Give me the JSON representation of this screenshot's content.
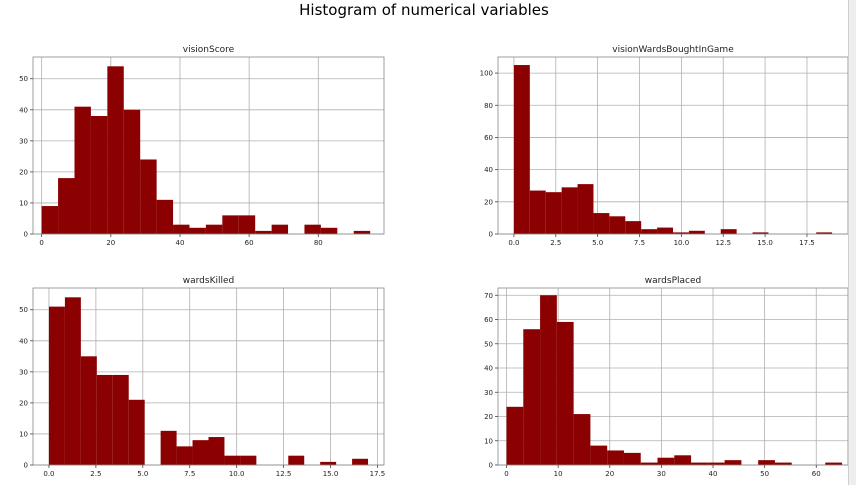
{
  "title": "Histogram of numerical variables",
  "colors": {
    "bar": "#8b0000",
    "grid": "#b0b0b0",
    "axis": "#888888"
  },
  "chart_data": [
    {
      "type": "bar",
      "title": "visionScore",
      "grid": true,
      "xlim": [
        -2.5,
        99
      ],
      "ylim": [
        0,
        57
      ],
      "xticks": [
        0,
        20,
        40,
        60,
        80
      ],
      "xtick_labels": [
        "0",
        "20",
        "40",
        "60",
        "80"
      ],
      "yticks": [
        0,
        10,
        20,
        30,
        40,
        50
      ],
      "ytick_labels": [
        "0",
        "10",
        "20",
        "30",
        "40",
        "50"
      ],
      "bin_edges": [
        0,
        4.75,
        9.5,
        14.25,
        19,
        23.75,
        28.5,
        33.25,
        38,
        42.75,
        47.5,
        52.25,
        57,
        61.75,
        66.5,
        71.25,
        76,
        80.75,
        85.5,
        90.25,
        95
      ],
      "values": [
        9,
        18,
        41,
        38,
        54,
        40,
        24,
        11,
        3,
        2,
        3,
        6,
        6,
        1,
        3,
        0,
        3,
        2,
        0,
        1
      ]
    },
    {
      "type": "bar",
      "title": "visionWardsBoughtInGame",
      "grid": true,
      "xlim": [
        -0.95,
        19.95
      ],
      "ylim": [
        0,
        110
      ],
      "xticks": [
        0,
        2.5,
        5,
        7.5,
        10,
        12.5,
        15,
        17.5
      ],
      "xtick_labels": [
        "0.0",
        "2.5",
        "5.0",
        "7.5",
        "10.0",
        "12.5",
        "15.0",
        "17.5"
      ],
      "yticks": [
        0,
        20,
        40,
        60,
        80,
        100
      ],
      "ytick_labels": [
        "0",
        "20",
        "40",
        "60",
        "80",
        "100"
      ],
      "bin_edges": [
        0,
        0.95,
        1.9,
        2.85,
        3.8,
        4.75,
        5.7,
        6.65,
        7.6,
        8.55,
        9.5,
        10.45,
        11.4,
        12.35,
        13.3,
        14.25,
        15.2,
        16.15,
        17.1,
        18.05,
        19
      ],
      "values": [
        105,
        27,
        26,
        29,
        31,
        13,
        11,
        8,
        3,
        4,
        1,
        2,
        0,
        3,
        0,
        1,
        0,
        0,
        0,
        1
      ]
    },
    {
      "type": "bar",
      "title": "wardsKilled",
      "grid": true,
      "xlim": [
        -0.85,
        17.85
      ],
      "ylim": [
        0,
        57
      ],
      "xticks": [
        0,
        2.5,
        5,
        7.5,
        10,
        12.5,
        15,
        17.5
      ],
      "xtick_labels": [
        "0.0",
        "2.5",
        "5.0",
        "7.5",
        "10.0",
        "12.5",
        "15.0",
        "17.5"
      ],
      "yticks": [
        0,
        10,
        20,
        30,
        40,
        50
      ],
      "ytick_labels": [
        "0",
        "10",
        "20",
        "30",
        "40",
        "50"
      ],
      "bin_edges": [
        0,
        0.85,
        1.7,
        2.55,
        3.4,
        4.25,
        5.1,
        5.95,
        6.8,
        7.65,
        8.5,
        9.35,
        10.2,
        11.05,
        11.9,
        12.75,
        13.6,
        14.45,
        15.3,
        16.15,
        17
      ],
      "values": [
        51,
        54,
        35,
        29,
        29,
        21,
        0,
        11,
        6,
        8,
        9,
        3,
        3,
        0,
        0,
        3,
        0,
        1,
        0,
        2
      ]
    },
    {
      "type": "bar",
      "title": "wardsPlaced",
      "grid": true,
      "xlim": [
        -1.65,
        66.15
      ],
      "ylim": [
        0,
        73
      ],
      "xticks": [
        0,
        10,
        20,
        30,
        40,
        50,
        60
      ],
      "xtick_labels": [
        "0",
        "10",
        "20",
        "30",
        "40",
        "50",
        "60"
      ],
      "yticks": [
        0,
        10,
        20,
        30,
        40,
        50,
        60,
        70
      ],
      "ytick_labels": [
        "0",
        "10",
        "20",
        "30",
        "40",
        "50",
        "60",
        "70"
      ],
      "bin_edges": [
        0,
        3.25,
        6.5,
        9.75,
        13,
        16.25,
        19.5,
        22.75,
        26,
        29.25,
        32.5,
        35.75,
        39,
        42.25,
        45.5,
        48.75,
        52,
        55.25,
        58.5,
        61.75,
        65
      ],
      "values": [
        24,
        56,
        70,
        59,
        21,
        8,
        6,
        5,
        1,
        3,
        4,
        1,
        1,
        2,
        0,
        2,
        1,
        0,
        0,
        1
      ]
    }
  ]
}
